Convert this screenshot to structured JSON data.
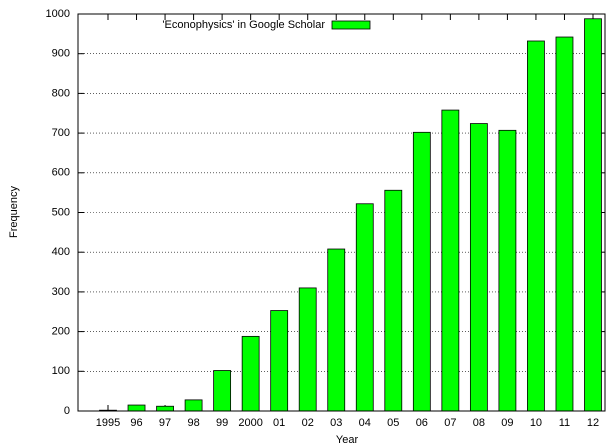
{
  "chart_data": {
    "type": "bar",
    "xlabel": "Year",
    "ylabel": "Frequency",
    "categories": [
      "1995",
      "96",
      "97",
      "98",
      "99",
      "2000",
      "01",
      "02",
      "03",
      "04",
      "05",
      "06",
      "07",
      "08",
      "09",
      "10",
      "11",
      "12"
    ],
    "series": [
      {
        "name": "'Econophysics' in Google Scholar",
        "color": "#00ff00",
        "values": [
          2,
          15,
          12,
          28,
          102,
          188,
          253,
          310,
          408,
          522,
          556,
          702,
          758,
          724,
          707,
          932,
          942,
          988
        ]
      }
    ],
    "ylim": [
      0,
      1000
    ],
    "yticks": [
      0,
      100,
      200,
      300,
      400,
      500,
      600,
      700,
      800,
      900,
      1000
    ],
    "grid": true,
    "legend": "top"
  }
}
